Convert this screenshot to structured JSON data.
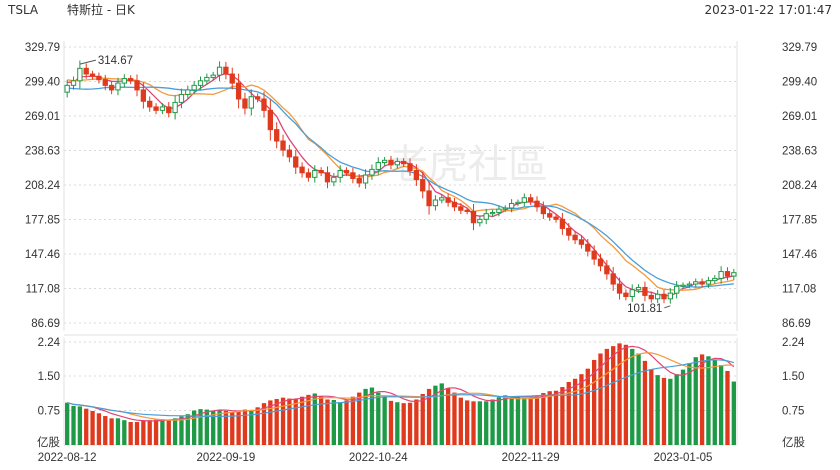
{
  "header": {
    "symbol": "TSLA",
    "name": "特斯拉 - 日K",
    "datetime": "2023-01-22 17:01:47"
  },
  "watermark": {
    "text": "老虎社區"
  },
  "colors": {
    "up": "#1e9a46",
    "down": "#e03a1e",
    "ma_red": "#e0457a",
    "ma_orange": "#f39a3d",
    "ma_blue": "#4a9fd8",
    "grid": "#d8d8d8"
  },
  "chart_data": {
    "type": "candlestick",
    "price_axis": {
      "ticks": [
        "329.79",
        "299.40",
        "269.01",
        "238.63",
        "208.24",
        "177.85",
        "147.46",
        "117.08",
        "86.69"
      ],
      "range": [
        86.69,
        329.79
      ]
    },
    "volume_axis": {
      "ticks": [
        "2.24",
        "1.50",
        "0.75"
      ],
      "unit_label": "亿股",
      "range": [
        0,
        2.24
      ]
    },
    "x_ticks": [
      {
        "label": "2022-08-12",
        "index": 0
      },
      {
        "label": "2022-09-19",
        "index": 25
      },
      {
        "label": "2022-10-24",
        "index": 49
      },
      {
        "label": "2022-11-29",
        "index": 73
      },
      {
        "label": "2023-01-05",
        "index": 97
      }
    ],
    "annotations": [
      {
        "text": "314.67",
        "index": 2,
        "value": 314.67
      },
      {
        "text": "101.81",
        "index": 95,
        "value": 101.81
      }
    ],
    "closes": [
      296.0,
      300.0,
      311.0,
      306.0,
      304.0,
      301.0,
      296.0,
      292.0,
      298.0,
      302.0,
      300.0,
      292.0,
      282.0,
      277.0,
      274.0,
      277.0,
      272.0,
      281.0,
      288.0,
      292.0,
      296.0,
      300.0,
      303.0,
      305.0,
      312.0,
      306.0,
      298.0,
      284.0,
      276.0,
      286.0,
      284.0,
      274.0,
      257.0,
      247.0,
      239.0,
      233.0,
      224.0,
      219.0,
      215.0,
      221.0,
      219.0,
      211.0,
      215.0,
      221.0,
      219.0,
      214.0,
      210.0,
      217.0,
      222.0,
      228.0,
      230.0,
      226.0,
      229.0,
      227.0,
      221.0,
      213.0,
      203.0,
      190.0,
      195.0,
      197.0,
      193.0,
      189.0,
      186.0,
      185.0,
      175.0,
      178.0,
      183.0,
      184.0,
      187.0,
      188.0,
      192.0,
      193.0,
      197.0,
      194.0,
      189.0,
      183.0,
      180.0,
      178.0,
      170.0,
      164.0,
      160.0,
      156.0,
      150.0,
      143.0,
      137.0,
      130.0,
      121.0,
      113.0,
      110.0,
      116.0,
      118.0,
      111.0,
      108.0,
      112.0,
      108.0,
      113.0,
      119.0,
      120.0,
      121.0,
      123.0,
      121.0,
      124.0,
      126.0,
      132.0,
      128.0,
      131.0
    ],
    "volumes": [
      0.92,
      0.85,
      0.84,
      0.79,
      0.74,
      0.69,
      0.63,
      0.58,
      0.58,
      0.54,
      0.5,
      0.5,
      0.53,
      0.54,
      0.55,
      0.56,
      0.54,
      0.58,
      0.62,
      0.67,
      0.75,
      0.78,
      0.77,
      0.75,
      0.76,
      0.74,
      0.71,
      0.74,
      0.77,
      0.76,
      0.82,
      0.91,
      0.97,
      1.0,
      1.03,
      1.01,
      0.99,
      1.05,
      1.09,
      1.12,
      1.06,
      0.99,
      0.98,
      0.93,
      0.97,
      1.05,
      1.14,
      1.22,
      1.25,
      1.14,
      1.06,
      0.96,
      0.93,
      0.91,
      0.92,
      0.99,
      1.11,
      1.22,
      1.29,
      1.34,
      1.23,
      1.14,
      1.03,
      0.97,
      0.95,
      0.95,
      0.95,
      0.99,
      1.04,
      1.08,
      1.05,
      1.04,
      1.02,
      1.02,
      1.06,
      1.13,
      1.17,
      1.18,
      1.26,
      1.37,
      1.44,
      1.54,
      1.66,
      1.85,
      1.99,
      2.09,
      2.15,
      2.21,
      2.18,
      2.09,
      1.99,
      1.83,
      1.65,
      1.52,
      1.46,
      1.44,
      1.54,
      1.64,
      1.78,
      1.91,
      1.97,
      1.93,
      1.84,
      1.74,
      1.61,
      1.38
    ],
    "ma_lines": [
      {
        "color": "red",
        "values": [
          298.7,
          298.9,
          303.4,
          303.8,
          304.1,
          303.5,
          301.1,
          299.6,
          299.5,
          299.9,
          300.3,
          299.8,
          295.6,
          290.4,
          284.8,
          279.3,
          275.6,
          276.3,
          279.7,
          283.9,
          289.6,
          293.5,
          297.0,
          300.6,
          304.9,
          306.3,
          304.6,
          300.5,
          294.4,
          289.0,
          283.6,
          280.3,
          274.7,
          268.7,
          257.7,
          248.3,
          240.6,
          232.8,
          226.5,
          221.9,
          220.3,
          217.7,
          215.5,
          216.3,
          217.2,
          216.2,
          216.1,
          216.7,
          217.6,
          220.1,
          225.0,
          226.9,
          228.4,
          228.3,
          226.7,
          223.5,
          218.8,
          210.4,
          202.4,
          199.8,
          195.7,
          192.5,
          191.0,
          187.8,
          181.8,
          180.8,
          181.5,
          180.4,
          182.8,
          185.7,
          189.4,
          191.9,
          193.2,
          193.4,
          192.8,
          190.6,
          186.4,
          182.4,
          177.9,
          172.3,
          167.2,
          163.7,
          157.6,
          151.6,
          144.5,
          137.5,
          130.4,
          124.0,
          118.6,
          116.4,
          114.3,
          114.5,
          113.7,
          111.8,
          111.3,
          110.4,
          113.4,
          117.2,
          118.4,
          121.8,
          121.9,
          123.7,
          124.4,
          126.0,
          127.0,
          128.2
        ]
      },
      {
        "color": "orange",
        "values": [
          300.9,
          300.1,
          300.5,
          300.8,
          301.3,
          301.8,
          302.3,
          301.9,
          301.6,
          301.4,
          301.2,
          300.4,
          298.7,
          296.7,
          292.9,
          289.5,
          287.4,
          286.9,
          287.7,
          288.2,
          288.6,
          288.6,
          288.3,
          288.0,
          290.0,
          292.2,
          295.0,
          295.5,
          294.4,
          296.2,
          294.8,
          291.7,
          287.1,
          281.7,
          276.2,
          271.2,
          264.6,
          256.3,
          248.4,
          244.9,
          239.7,
          234.4,
          228.2,
          222.6,
          218.5,
          216.9,
          215.2,
          215.1,
          216.2,
          217.0,
          219.4,
          220.4,
          222.6,
          224.7,
          223.9,
          222.7,
          220.4,
          214.6,
          209.9,
          203.4,
          200.6,
          197.9,
          194.7,
          190.4,
          184.9,
          185.9,
          186.4,
          186.9,
          186.6,
          185.7,
          185.6,
          186.7,
          187.3,
          189.5,
          189.7,
          189.5,
          190.1,
          191.3,
          189.3,
          186.1,
          183.3,
          178.6,
          175.0,
          170.3,
          163.9,
          158.9,
          154.1,
          148.2,
          141.5,
          137.7,
          133.2,
          128.9,
          123.6,
          118.2,
          116.4,
          116.0,
          115.8,
          115.6,
          115.9,
          116.4,
          118.1,
          119.8,
          121.2,
          122.4,
          123.2,
          124.6
        ]
      },
      {
        "color": "blue",
        "values": [
          293.5,
          293.2,
          292.8,
          292.6,
          292.8,
          293.2,
          294.0,
          294.3,
          294.3,
          294.4,
          294.3,
          294.1,
          294.2,
          294.5,
          294.3,
          293.9,
          293.5,
          292.6,
          292.1,
          291.7,
          291.6,
          291.8,
          292.6,
          293.2,
          293.7,
          293.6,
          293.5,
          293.1,
          292.0,
          291.4,
          290.2,
          287.9,
          283.9,
          279.2,
          273.2,
          267.3,
          262.2,
          255.6,
          249.9,
          245.5,
          241.1,
          235.9,
          232.0,
          228.3,
          226.2,
          224.0,
          222.4,
          220.5,
          219.9,
          220.3,
          220.8,
          220.5,
          220.3,
          220.6,
          219.8,
          218.4,
          215.8,
          212.1,
          208.7,
          206.0,
          203.6,
          201.3,
          198.6,
          195.6,
          193.5,
          193.1,
          192.6,
          191.6,
          189.7,
          187.7,
          187.4,
          187.7,
          188.9,
          189.3,
          189.8,
          189.9,
          189.6,
          188.7,
          186.3,
          183.9,
          181.5,
          178.4,
          175.1,
          171.7,
          167.7,
          163.4,
          158.3,
          152.8,
          147.2,
          142.1,
          137.5,
          133.1,
          129.4,
          126.1,
          123.7,
          121.7,
          120.2,
          119.2,
          118.8,
          118.2,
          118.5,
          119.0,
          119.4,
          120.1,
          120.6,
          121.2
        ]
      }
    ]
  }
}
